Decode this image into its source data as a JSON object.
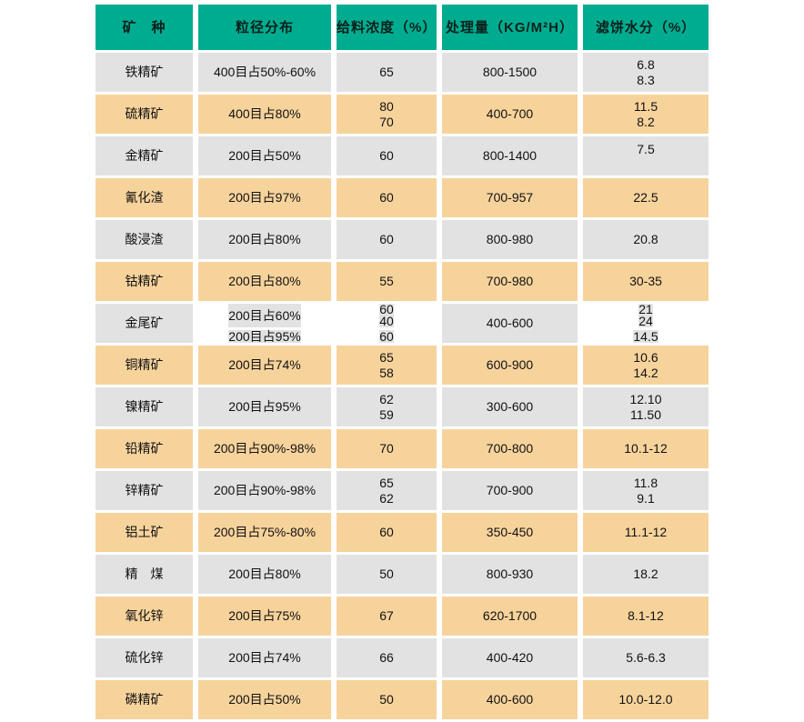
{
  "colors": {
    "header_bg": "#00AC8F",
    "row_gray": "#E2E2E2",
    "row_orange": "#F7D39C",
    "text": "#111111",
    "background": "#FFFFFF"
  },
  "table": {
    "columns": [
      {
        "label": "矿　种"
      },
      {
        "label": "粒径分布"
      },
      {
        "label": "给料浓度（%）"
      },
      {
        "label": "处理量（KG/M²H）"
      },
      {
        "label": "滤饼水分（%）"
      }
    ],
    "rows": [
      {
        "mineral": "铁精矿",
        "size": "400目占50%-60%",
        "conc": "65",
        "capacity": "800-1500",
        "moisture": "6.8\n8.3"
      },
      {
        "mineral": "硫精矿",
        "size": "400目占80%",
        "conc": "80\n70",
        "capacity": "400-700",
        "moisture": "11.5\n8.2"
      },
      {
        "mineral": "金精矿",
        "size": "200目占50%",
        "conc": "60",
        "capacity": "800-1400",
        "moisture": "7.5"
      },
      {
        "mineral": "氰化渣",
        "size": "200目占97%",
        "conc": "60",
        "capacity": "700-957",
        "moisture": "22.5"
      },
      {
        "mineral": "酸浸渣",
        "size": "200目占80%",
        "conc": "60",
        "capacity": "800-980",
        "moisture": "20.8"
      },
      {
        "mineral": "钴精矿",
        "size": "200目占80%",
        "conc": "55",
        "capacity": "700-980",
        "moisture": "30-35"
      },
      {
        "mineral": "金尾矿",
        "size_top": "200目占60%",
        "size_bottom": "200目占95%",
        "conc_top": "60\n40",
        "conc_bottom": "60",
        "capacity": "400-600",
        "moisture_top": "21\n24",
        "moisture_bottom": "14.5"
      },
      {
        "mineral": "铜精矿",
        "size": "200目占74%",
        "conc": "65\n58",
        "capacity": "600-900",
        "moisture": "10.6\n14.2"
      },
      {
        "mineral": "镍精矿",
        "size": "200目占95%",
        "conc": "62\n59",
        "capacity": "300-600",
        "moisture": "12.10\n11.50"
      },
      {
        "mineral": "铅精矿",
        "size": "200目占90%-98%",
        "conc": "70",
        "capacity": "700-800",
        "moisture": "10.1-12"
      },
      {
        "mineral": "锌精矿",
        "size": "200目占90%-98%",
        "conc": "65\n62",
        "capacity": "700-900",
        "moisture": "11.8\n9.1"
      },
      {
        "mineral": "铝土矿",
        "size": "200目占75%-80%",
        "conc": "60",
        "capacity": "350-450",
        "moisture": "11.1-12"
      },
      {
        "mineral": "精　煤",
        "size": "200目占80%",
        "conc": "50",
        "capacity": "800-930",
        "moisture": "18.2"
      },
      {
        "mineral": "氧化锌",
        "size": "200目占75%",
        "conc": "67",
        "capacity": "620-1700",
        "moisture": "8.1-12"
      },
      {
        "mineral": "硫化锌",
        "size": "200目占74%",
        "conc": "66",
        "capacity": "400-420",
        "moisture": "5.6-6.3"
      },
      {
        "mineral": "磷精矿",
        "size": "200目占50%",
        "conc": "50",
        "capacity": "400-600",
        "moisture": "10.0-12.0"
      }
    ]
  }
}
